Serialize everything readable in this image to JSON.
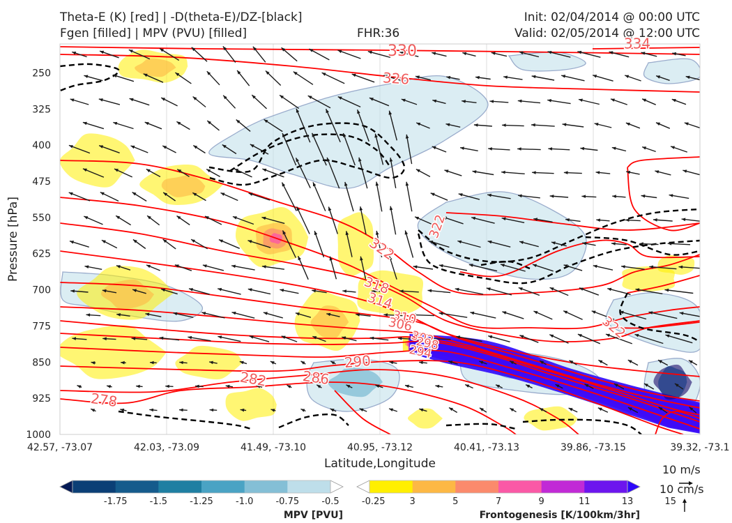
{
  "header": {
    "title_line1": "Theta-E (K) [red] | -D(theta-E)/DZ-[black]",
    "title_line2": "Fgen [filled] | MPV (PVU) [filled]",
    "fhr": "FHR:36",
    "init": "Init: 02/04/2014 @ 00:00 UTC",
    "valid": "Valid: 02/05/2014 @ 12:00 UTC"
  },
  "chart_data": {
    "type": "cross-section",
    "xlabel": "Latitude,Longitude",
    "ylabel": "Pressure [hPa]",
    "x_ticks": [
      "42.57, -73.07",
      "42.03, -73.09",
      "41.49, -73.10",
      "40.95, -73.12",
      "40.41, -73.13",
      "39.86, -73.15",
      "39.32, -73.1"
    ],
    "y_ticks": [
      250,
      325,
      400,
      475,
      550,
      625,
      700,
      775,
      850,
      925,
      1000
    ],
    "ylim": [
      1000,
      190
    ],
    "theta_e_labels": [
      "330",
      "334",
      "326",
      "322",
      "322",
      "318",
      "314",
      "310",
      "306",
      "302",
      "298",
      "294",
      "290",
      "286",
      "282",
      "278",
      "322"
    ],
    "theta_e_levels": [
      278,
      282,
      286,
      290,
      294,
      298,
      302,
      306,
      310,
      314,
      318,
      322,
      326,
      330,
      334
    ],
    "contour_colors": {
      "theta_e": "#ff0000",
      "dthetae_dz": "#000000",
      "label": "#f05a5a"
    },
    "mpv_colorbar": {
      "label": "MPV [PVU]",
      "ticks": [
        "-1.75",
        "-1.5",
        "-1.25",
        "-1.0",
        "-0.75",
        "-0.5",
        "-0.25"
      ],
      "colors": [
        "#041a55",
        "#0b3f76",
        "#155b8c",
        "#1f7fa2",
        "#4aa3c4",
        "#84bfd6",
        "#bedeea",
        "#ffffff"
      ]
    },
    "fgen_colorbar": {
      "label": "Frontogenesis [K/100km/3hr]",
      "ticks": [
        "3",
        "5",
        "7",
        "9",
        "11",
        "13",
        "15"
      ],
      "colors": [
        "#ffffff",
        "#ffef00",
        "#fdb844",
        "#fb8a6c",
        "#fa59a6",
        "#c12ad6",
        "#6c15ee",
        "#2d08fb"
      ]
    },
    "vector_reference": {
      "horizontal": "10 m/s",
      "vertical": "10 cm/s"
    }
  }
}
